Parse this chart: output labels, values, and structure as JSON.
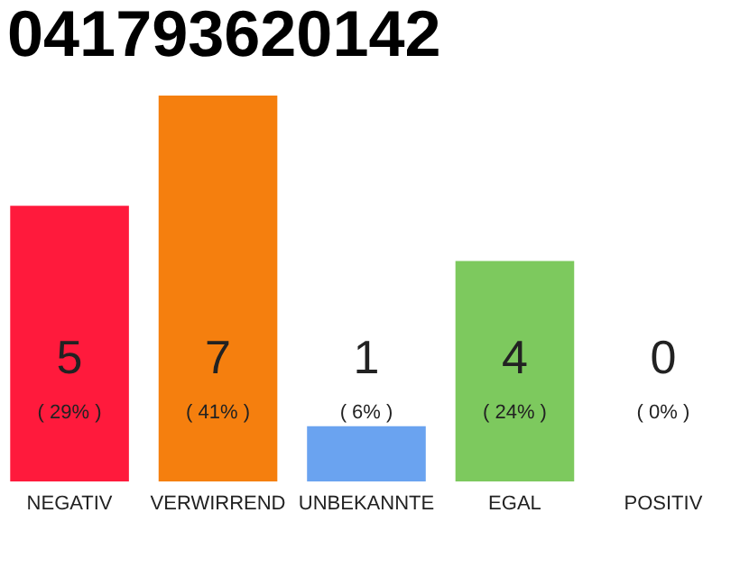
{
  "chart_data": {
    "type": "bar",
    "title": "041793620142",
    "categories": [
      "NEGATIV",
      "VERWIRREND",
      "UNBEKANNTE",
      "EGAL",
      "POSITIV"
    ],
    "values": [
      5,
      7,
      1,
      4,
      0
    ],
    "colors": [
      "#ff1a3c",
      "#f57f0e",
      "#6aa3f0",
      "#7dc95e",
      "#f0f0f0"
    ],
    "data_labels": true,
    "annotations": [
      "( 29% )",
      "( 41% )",
      "( 6% )",
      "( 24% )",
      "( 0% )"
    ],
    "grid": false
  }
}
